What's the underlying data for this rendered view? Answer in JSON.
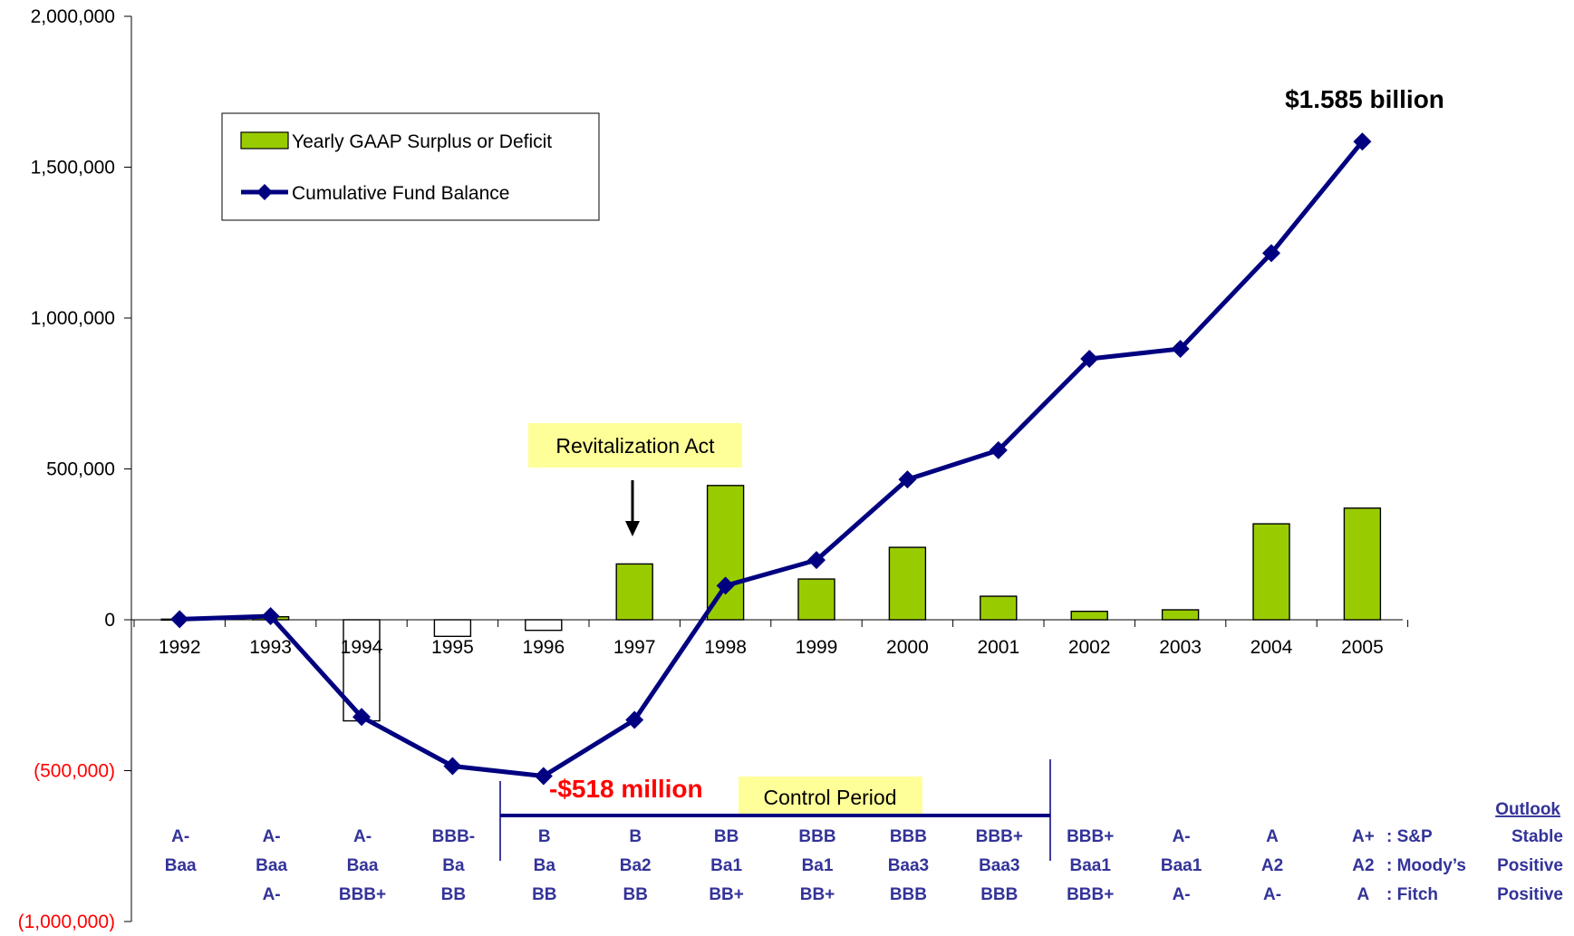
{
  "chart_data": {
    "type": "bar",
    "categories": [
      "1992",
      "1993",
      "1994",
      "1995",
      "1996",
      "1997",
      "1998",
      "1999",
      "2000",
      "2001",
      "2002",
      "2003",
      "2004",
      "2005"
    ],
    "series": [
      {
        "name": "Yearly GAAP Surplus or Deficit",
        "type": "bar",
        "values": [
          2000,
          10000,
          -335000,
          -55000,
          -35000,
          185000,
          445000,
          135000,
          240000,
          78000,
          28000,
          33000,
          318000,
          370000
        ]
      },
      {
        "name": "Cumulative Fund Balance",
        "type": "line",
        "values": [
          2000,
          12000,
          -322000,
          -485000,
          -518000,
          -332000,
          113000,
          198000,
          465000,
          562000,
          865000,
          898000,
          1215000,
          1585000
        ]
      }
    ],
    "ylim": [
      -1000000,
      2000000
    ],
    "yticks": [
      -1000000,
      -500000,
      0,
      500000,
      1000000,
      1500000,
      2000000
    ],
    "ytick_labels": [
      "(1,000,000)",
      "(500,000)",
      "0",
      "500,000",
      "1,000,000",
      "1,500,000",
      "2,000,000"
    ],
    "legend_position": "upper-left",
    "grid": false,
    "colors": {
      "bar_fill": "#99cc00",
      "line": "#000080",
      "negative_tick": "#ff0000",
      "rating_text": "#333399",
      "callout_bg": "#ffff99"
    },
    "annotations": {
      "max_label": "$1.585 billion",
      "min_label": "-$518 million",
      "revitalization": "Revitalization Act",
      "control_period": "Control Period"
    },
    "ratings": {
      "sp": [
        "A-",
        "A-",
        "A-",
        "BBB-",
        "B",
        "B",
        "BB",
        "BBB",
        "BBB",
        "BBB+",
        "BBB+",
        "A-",
        "A",
        "A+"
      ],
      "moodys": [
        "Baa",
        "Baa",
        "Baa",
        "Ba",
        "Ba",
        "Ba2",
        "Ba1",
        "Ba1",
        "Baa3",
        "Baa3",
        "Baa1",
        "Baa1",
        "A2",
        "A2"
      ],
      "fitch": [
        "",
        "A-",
        "BBB+",
        "BB",
        "BB",
        "BB",
        "BB+",
        "BB+",
        "BBB",
        "BBB",
        "BBB+",
        "A-",
        "A-",
        "A"
      ],
      "agency_labels": [
        ": S&P",
        ": Moody’s",
        ": Fitch"
      ],
      "outlook_header": "Outlook",
      "outlook_values": [
        "Stable",
        "Positive",
        "Positive"
      ]
    }
  }
}
